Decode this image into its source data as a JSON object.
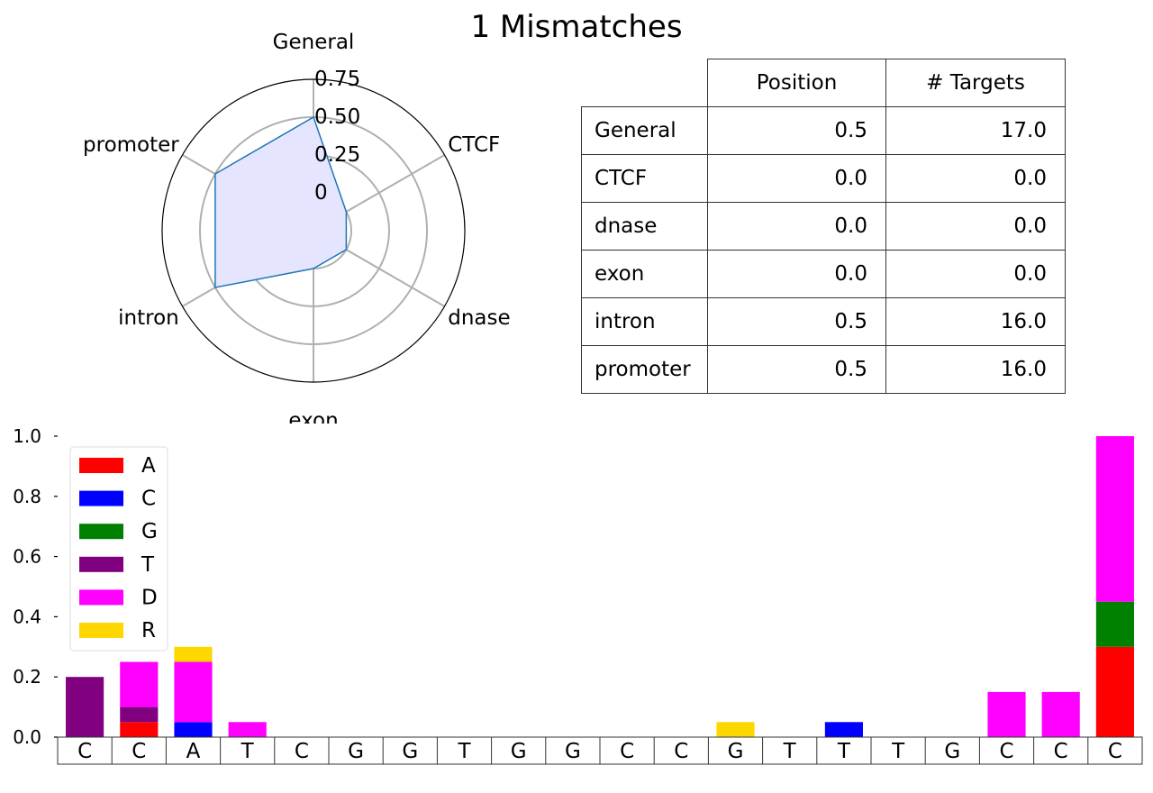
{
  "title": "1 Mismatches",
  "colors": {
    "A": "#ff0000",
    "C": "#0000ff",
    "G": "#008000",
    "T": "#800080",
    "D": "#ff00ff",
    "R": "#ffd700",
    "radar_fill": "#e5e5ff",
    "radar_line": "#1f77b4",
    "grid": "#b0b0b0"
  },
  "table": {
    "columns": [
      "",
      "Position",
      "# Targets"
    ],
    "rows": [
      {
        "label": "General",
        "position": "0.5",
        "targets": "17.0"
      },
      {
        "label": "CTCF",
        "position": "0.0",
        "targets": "0.0"
      },
      {
        "label": "dnase",
        "position": "0.0",
        "targets": "0.0"
      },
      {
        "label": "exon",
        "position": "0.0",
        "targets": "0.0"
      },
      {
        "label": "intron",
        "position": "0.5",
        "targets": "16.0"
      },
      {
        "label": "promoter",
        "position": "0.5",
        "targets": "16.0"
      }
    ]
  },
  "chart_data": [
    {
      "type": "radar",
      "axes": [
        "General",
        "CTCF",
        "dnase",
        "exon",
        "intron",
        "promoter"
      ],
      "values": [
        0.5,
        0.0,
        0.0,
        0.0,
        0.5,
        0.5
      ],
      "rlim": [
        -0.25,
        0.75
      ],
      "radial_ticks": [
        0,
        0.25,
        0.5,
        0.75
      ],
      "radial_tick_labels": [
        "0",
        "0.25",
        "0.50",
        "0.75"
      ],
      "grid": true
    },
    {
      "type": "bar",
      "stacked": true,
      "categories": [
        "C",
        "C",
        "A",
        "T",
        "C",
        "G",
        "G",
        "T",
        "G",
        "G",
        "C",
        "C",
        "G",
        "T",
        "T",
        "T",
        "G",
        "C",
        "C",
        "C"
      ],
      "series": [
        {
          "name": "A",
          "values": [
            0,
            0.05,
            0,
            0,
            0,
            0,
            0,
            0,
            0,
            0,
            0,
            0,
            0,
            0,
            0,
            0,
            0,
            0,
            0,
            0.3
          ]
        },
        {
          "name": "C",
          "values": [
            0,
            0,
            0.05,
            0,
            0,
            0,
            0,
            0,
            0,
            0,
            0,
            0,
            0,
            0,
            0.05,
            0,
            0,
            0,
            0,
            0
          ]
        },
        {
          "name": "G",
          "values": [
            0,
            0,
            0,
            0,
            0,
            0,
            0,
            0,
            0,
            0,
            0,
            0,
            0,
            0,
            0,
            0,
            0,
            0,
            0,
            0.15
          ]
        },
        {
          "name": "T",
          "values": [
            0.2,
            0.05,
            0,
            0,
            0,
            0,
            0,
            0,
            0,
            0,
            0,
            0,
            0,
            0,
            0,
            0,
            0,
            0,
            0,
            0
          ]
        },
        {
          "name": "D",
          "values": [
            0,
            0.15,
            0.2,
            0.05,
            0,
            0,
            0,
            0,
            0,
            0,
            0,
            0,
            0,
            0,
            0,
            0,
            0,
            0.15,
            0.15,
            0.55
          ]
        },
        {
          "name": "R",
          "values": [
            0,
            0,
            0.05,
            0,
            0,
            0,
            0,
            0,
            0,
            0,
            0,
            0,
            0.05,
            0,
            0,
            0,
            0,
            0,
            0,
            0
          ]
        }
      ],
      "ylim": [
        0,
        1.0
      ],
      "yticks": [
        0.0,
        0.2,
        0.4,
        0.6,
        0.8,
        1.0
      ],
      "ytick_labels": [
        "0.0",
        "0.2",
        "0.4",
        "0.6",
        "0.8",
        "1.0"
      ],
      "legend_position": "upper-left",
      "grid": false
    }
  ]
}
